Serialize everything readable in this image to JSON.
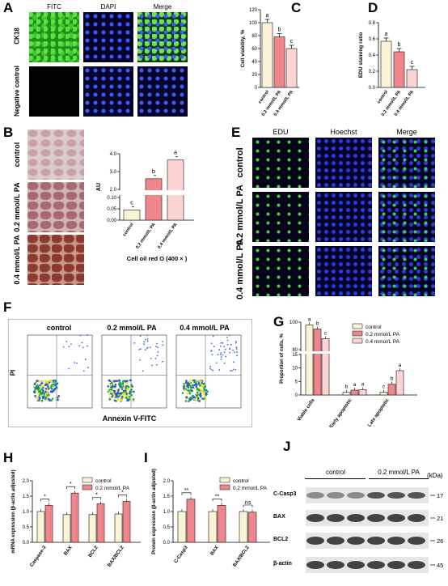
{
  "panels": {
    "A": "A",
    "B": "B",
    "C": "C",
    "D": "D",
    "E": "E",
    "F": "F",
    "G": "G",
    "H": "H",
    "I": "I",
    "J": "J"
  },
  "panel_a": {
    "cols": [
      "FITC",
      "DAPI",
      "Merge"
    ],
    "rows": [
      "CK18",
      "Negative control"
    ]
  },
  "panel_b": {
    "rows": [
      "control",
      "0.2 mmol/L PA",
      "0.4 mmol/L PA"
    ]
  },
  "panel_e": {
    "cols": [
      "EDU",
      "Hoechst",
      "Merge"
    ],
    "rows": [
      "control",
      "0.2 mmol/L PA",
      "0.4 mmol/L PA"
    ]
  },
  "panel_f": {
    "cols": [
      "control",
      "0.2 mmol/L PA",
      "0.4 mmol/L PA"
    ],
    "ylabel": "PI",
    "xlabel": "Annexin V-FITC"
  },
  "panel_j": {
    "groups": [
      "control",
      "0.2 mmol/L PA"
    ],
    "kda": "(kDa)",
    "bands": [
      {
        "name": "C-Casp3",
        "size": "17"
      },
      {
        "name": "BAX",
        "size": "21"
      },
      {
        "name": "BCL2",
        "size": "26"
      },
      {
        "name": "β-actin",
        "size": "45"
      }
    ]
  },
  "chart_data": [
    {
      "id": "B",
      "type": "bar",
      "categories": [
        "control",
        "0.2 mmol/L PA",
        "0.4 mmol/L PA"
      ],
      "values": [
        0.045,
        2.6,
        3.65
      ],
      "ylabel": "AU",
      "xlabel": "Cell oil red O (400 × )",
      "letters": [
        "c",
        "b",
        "a"
      ],
      "yticks": [
        "0.00",
        "0.05",
        "0.10",
        "2.0",
        "3.0",
        "4.0"
      ],
      "colors": [
        "#fbf3d6",
        "#f1858c",
        "#fbd3d0"
      ]
    },
    {
      "id": "C",
      "type": "bar",
      "categories": [
        "control",
        "0.2 mmol/L PA",
        "0.4 mmol/L PA"
      ],
      "values": [
        100,
        78,
        60
      ],
      "ylabel": "Cell viability, %",
      "ylim": [
        0,
        120
      ],
      "yticks": [
        "0",
        "20",
        "40",
        "60",
        "80",
        "100",
        "120"
      ],
      "letters": [
        "a",
        "b",
        "c"
      ],
      "colors": [
        "#fbf3d6",
        "#f1858c",
        "#fbd3d0"
      ]
    },
    {
      "id": "D",
      "type": "bar",
      "categories": [
        "control",
        "0.2 mmol/L PA",
        "0.4 mmol/L PA"
      ],
      "values": [
        0.57,
        0.44,
        0.22
      ],
      "ylabel": "EDU staining ratio",
      "ylim": [
        0,
        0.8
      ],
      "yticks": [
        "0.0",
        "0.2",
        "0.4",
        "0.6",
        "0.8"
      ],
      "letters": [
        "a",
        "b",
        "c"
      ],
      "colors": [
        "#fbf3d6",
        "#f1858c",
        "#fbd3d0"
      ]
    },
    {
      "id": "G",
      "type": "bar",
      "categories": [
        "Viable cells",
        "Early apoptotic",
        "Late apoptotic"
      ],
      "series": [
        {
          "name": "control",
          "values": [
            98,
            1,
            1
          ]
        },
        {
          "name": "0.2 mmol/L PA",
          "values": [
            95,
            1.8,
            4
          ]
        },
        {
          "name": "0.4 mmol/L PA",
          "values": [
            88,
            2,
            9
          ]
        }
      ],
      "ylabel": "Proportion of cells, %",
      "yticks": [
        "0",
        "5",
        "10",
        "15",
        "80",
        "100"
      ],
      "letters": [
        [
          "a",
          "b",
          "c"
        ],
        [
          "b",
          "a",
          "a"
        ],
        [
          "c",
          "b",
          "a"
        ]
      ],
      "colors": [
        "#fbf3d6",
        "#f1858c",
        "#fbd3d0"
      ]
    },
    {
      "id": "H",
      "type": "bar",
      "categories": [
        "Caspase-3",
        "BAX",
        "BCL2",
        "BAX/BCL2"
      ],
      "series": [
        {
          "name": "control",
          "values": [
            1.0,
            0.9,
            0.9,
            0.92
          ]
        },
        {
          "name": "0.2 mmol/L PA",
          "values": [
            1.2,
            1.6,
            1.25,
            1.33
          ]
        }
      ],
      "ylabel": "mRNA expression (β-actin adjusted)",
      "ylim": [
        0,
        2.0
      ],
      "yticks": [
        "0.0",
        "0.5",
        "1.0",
        "1.5",
        "2.0"
      ],
      "sig": [
        "*",
        "*",
        "*",
        "*"
      ],
      "colors": [
        "#fbf3d6",
        "#f1858c"
      ]
    },
    {
      "id": "I",
      "type": "bar",
      "categories": [
        "C-Casp3",
        "BAX",
        "BAX/BCL2"
      ],
      "series": [
        {
          "name": "control",
          "values": [
            1.0,
            1.0,
            1.0
          ]
        },
        {
          "name": "0.2 mmol/L PA",
          "values": [
            1.4,
            1.2,
            0.98
          ]
        }
      ],
      "ylabel": "Protein expression (β-actin adjusted)",
      "ylim": [
        0,
        2.0
      ],
      "yticks": [
        "0.0",
        "0.5",
        "1.0",
        "1.5",
        "2.0"
      ],
      "sig": [
        "**",
        "**",
        "ns"
      ],
      "colors": [
        "#fbf3d6",
        "#f1858c"
      ]
    }
  ]
}
